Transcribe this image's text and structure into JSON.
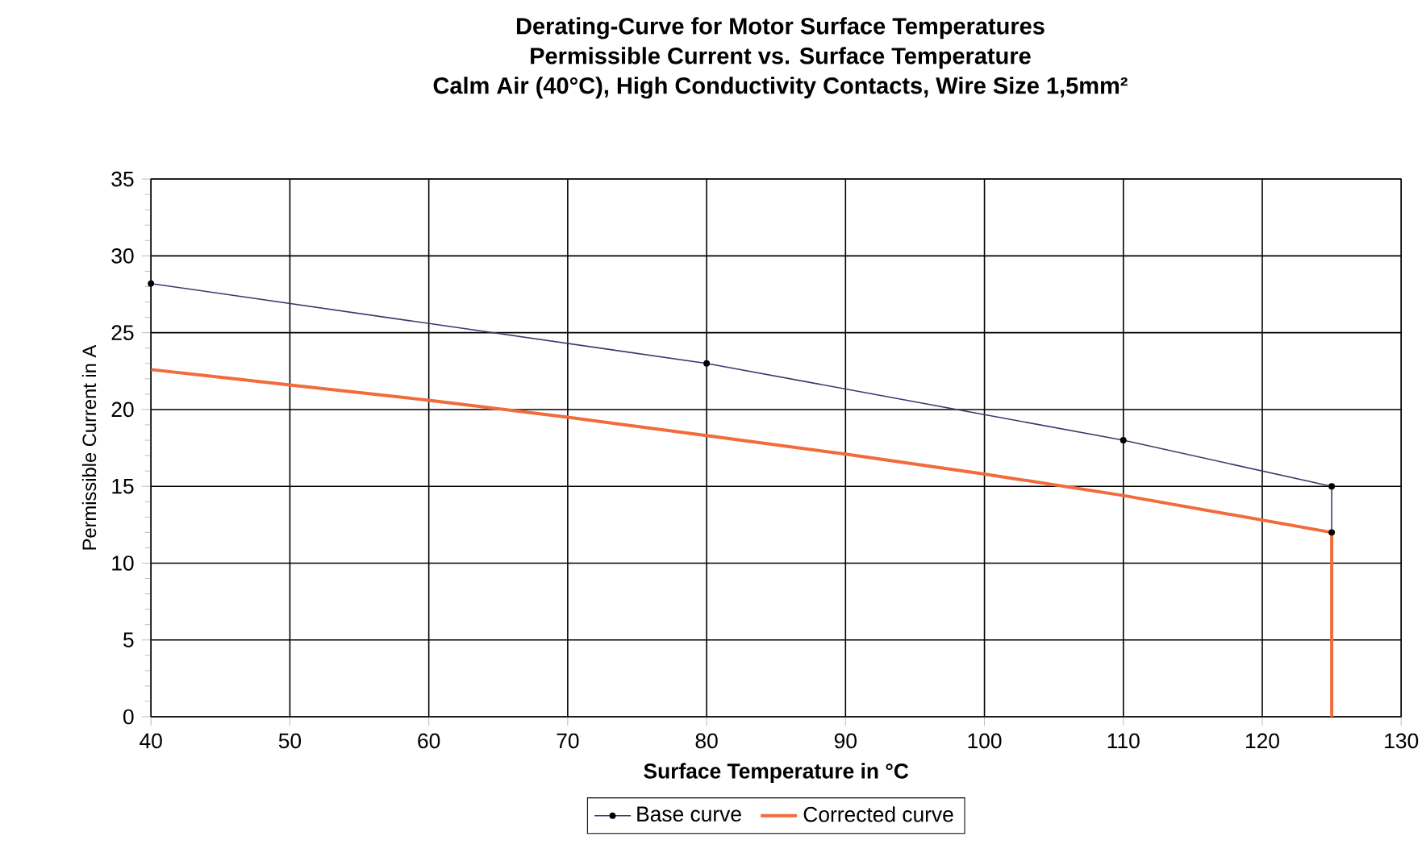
{
  "chart_data": {
    "type": "line",
    "title": "Derating-Curve for Motor Surface Temperatures",
    "subtitle": "Permissible Current vs. Surface Temperature",
    "annotations": [
      "Calm Air (40°C), High Conductivity Contacts, Wire Size 1,5mm²"
    ],
    "xlabel": "Surface Temperature in °C",
    "ylabel": "Permissible Current in A",
    "xlim": [
      40,
      130
    ],
    "ylim": [
      0,
      35
    ],
    "xticks": [
      40,
      50,
      60,
      70,
      80,
      90,
      100,
      110,
      120,
      130
    ],
    "yticks": [
      0,
      5,
      10,
      15,
      20,
      25,
      30,
      35
    ],
    "grid": true,
    "legend": "bottom",
    "series": [
      {
        "name": "Base curve",
        "color": "#3c3a6e",
        "marker": "circle",
        "x": [
          40,
          80,
          110,
          125,
          125
        ],
        "values": [
          28.2,
          23.0,
          18.0,
          15.0,
          12.0
        ]
      },
      {
        "name": "Corrected curve",
        "color": "#f26b3a",
        "x": [
          40,
          50,
          60,
          70,
          80,
          90,
          100,
          110,
          125,
          125
        ],
        "values": [
          22.6,
          21.6,
          20.6,
          19.5,
          18.3,
          17.1,
          15.8,
          14.4,
          12.0,
          0
        ]
      }
    ]
  }
}
